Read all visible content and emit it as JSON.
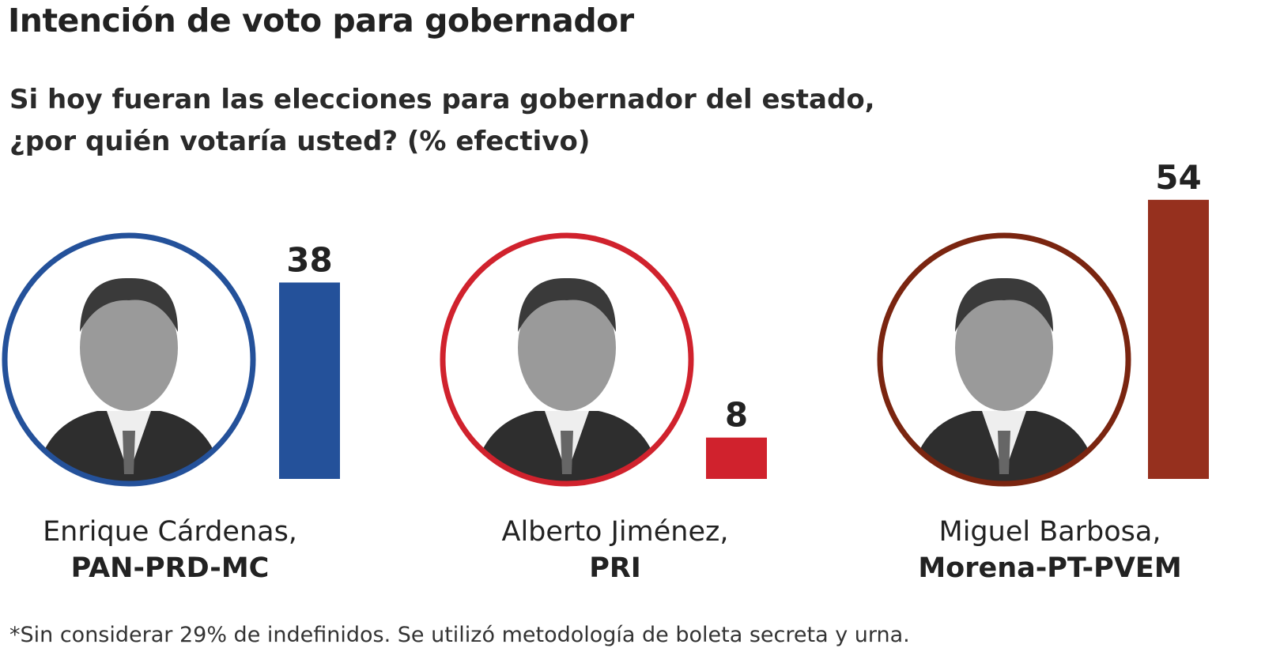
{
  "title": "Intención de voto para gobernador",
  "subtitle_line1": "Si hoy fueran las elecciones para gobernador del estado,",
  "subtitle_line2": "¿por quién votaría usted? (% efectivo)",
  "footnote": "*Sin considerar 29% de indefinidos. Se utilizó metodología de boleta secreta y urna.",
  "chart_data": {
    "type": "bar",
    "categories": [
      "Enrique Cárdenas, PAN-PRD-MC",
      "Alberto Jiménez, PRI",
      "Miguel Barbosa, Morena-PT-PVEM"
    ],
    "values": [
      38,
      8,
      54
    ],
    "candidates": [
      {
        "name": "Enrique Cárdenas,",
        "party": "PAN-PRD-MC",
        "value": 38,
        "color": "#24519a",
        "ring": "#24519a"
      },
      {
        "name": "Alberto Jiménez,",
        "party": "PRI",
        "value": 8,
        "color": "#d0222d",
        "ring": "#d0222d"
      },
      {
        "name": "Miguel Barbosa,",
        "party": "Morena-PT-PVEM",
        "value": 54,
        "color": "#96301e",
        "ring": "#7a2510"
      }
    ],
    "title": "Intención de voto para gobernador",
    "xlabel": "",
    "ylabel": "",
    "grid": false
  }
}
